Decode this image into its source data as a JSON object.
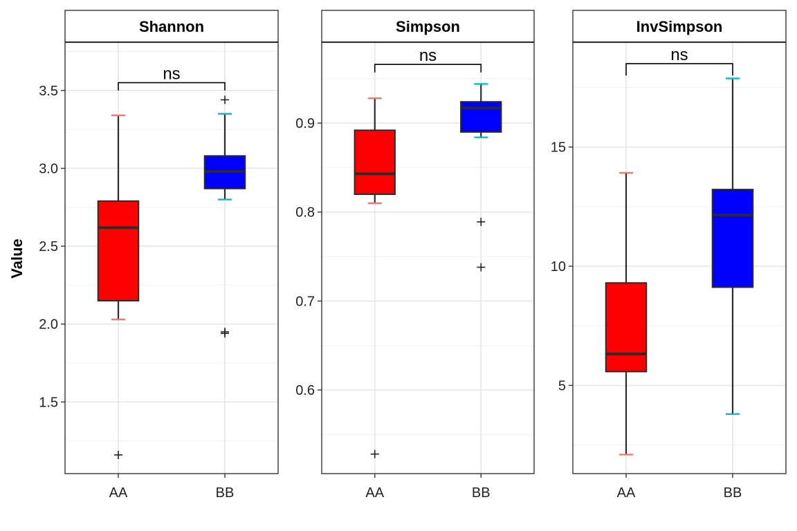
{
  "chart_data": [
    {
      "type": "box",
      "title": "Shannon",
      "categories": [
        "AA",
        "BB"
      ],
      "ylabel": "Value",
      "ylim": [
        1.04,
        3.81
      ],
      "yticks": [
        1.5,
        2.0,
        2.5,
        3.0,
        3.5
      ],
      "ytick_labels": [
        "1.5",
        "2.0",
        "2.5",
        "3.0",
        "3.5"
      ],
      "series": [
        {
          "category": "AA",
          "whisker_low": 2.03,
          "q1": 2.15,
          "median": 2.62,
          "q3": 2.79,
          "whisker_high": 3.34,
          "outliers": [
            1.16
          ],
          "fill": "#ff0000",
          "whisker_color": "#f8766d"
        },
        {
          "category": "BB",
          "whisker_low": 2.8,
          "q1": 2.87,
          "median": 2.98,
          "q3": 3.08,
          "whisker_high": 3.35,
          "outliers": [
            3.44,
            1.94,
            1.95
          ],
          "fill": "#0000ff",
          "whisker_color": "#00bfc4"
        }
      ],
      "comparison": {
        "label": "ns",
        "y": 3.55,
        "tick_bottom": 3.5
      }
    },
    {
      "type": "box",
      "title": "Simpson",
      "categories": [
        "AA",
        "BB"
      ],
      "ylabel": "",
      "ylim": [
        0.506,
        0.991
      ],
      "yticks": [
        0.6,
        0.7,
        0.8,
        0.9
      ],
      "ytick_labels": [
        "0.6",
        "0.7",
        "0.8",
        "0.9"
      ],
      "series": [
        {
          "category": "AA",
          "whisker_low": 0.81,
          "q1": 0.82,
          "median": 0.843,
          "q3": 0.892,
          "whisker_high": 0.928,
          "outliers": [
            0.528
          ],
          "fill": "#ff0000",
          "whisker_color": "#f8766d"
        },
        {
          "category": "BB",
          "whisker_low": 0.884,
          "q1": 0.89,
          "median": 0.917,
          "q3": 0.924,
          "whisker_high": 0.944,
          "outliers": [
            0.789,
            0.738
          ],
          "fill": "#0000ff",
          "whisker_color": "#00bfc4"
        }
      ],
      "comparison": {
        "label": "ns",
        "y": 0.966,
        "tick_bottom": 0.957
      }
    },
    {
      "type": "box",
      "title": "InvSimpson",
      "categories": [
        "AA",
        "BB"
      ],
      "ylabel": "",
      "ylim": [
        1.3,
        19.4
      ],
      "yticks": [
        5,
        10,
        15
      ],
      "ytick_labels": [
        "5",
        "10",
        "15"
      ],
      "series": [
        {
          "category": "AA",
          "whisker_low": 2.1,
          "q1": 5.58,
          "median": 6.32,
          "q3": 9.3,
          "whisker_high": 13.92,
          "outliers": [],
          "fill": "#ff0000",
          "whisker_color": "#f8766d"
        },
        {
          "category": "BB",
          "whisker_low": 3.8,
          "q1": 9.12,
          "median": 12.15,
          "q3": 13.22,
          "whisker_high": 17.88,
          "outliers": [],
          "fill": "#0000ff",
          "whisker_color": "#00bfc4"
        }
      ],
      "comparison": {
        "label": "ns",
        "y": 18.5,
        "tick_bottom": 18.0
      }
    }
  ]
}
